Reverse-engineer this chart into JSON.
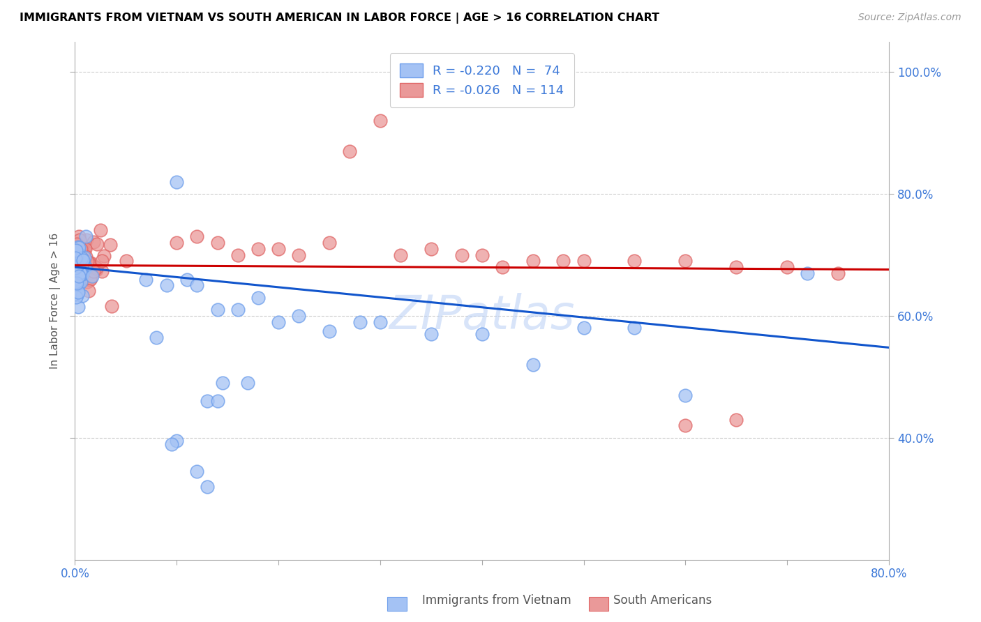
{
  "title": "IMMIGRANTS FROM VIETNAM VS SOUTH AMERICAN IN LABOR FORCE | AGE > 16 CORRELATION CHART",
  "source": "Source: ZipAtlas.com",
  "ylabel": "In Labor Force | Age > 16",
  "xlim": [
    0.0,
    0.8
  ],
  "ylim": [
    0.2,
    1.05
  ],
  "yticks_right": [
    0.4,
    0.6,
    0.8,
    1.0
  ],
  "ytick_labels_right": [
    "40.0%",
    "60.0%",
    "80.0%",
    "100.0%"
  ],
  "blue_color": "#a4c2f4",
  "blue_edge_color": "#6d9eeb",
  "pink_color": "#ea9999",
  "pink_edge_color": "#e06666",
  "blue_line_color": "#1155cc",
  "pink_line_color": "#cc0000",
  "watermark": "ZIPatlas",
  "legend_R_blue": "-0.220",
  "legend_N_blue": "74",
  "legend_R_pink": "-0.026",
  "legend_N_pink": "114",
  "blue_line_start_y": 0.68,
  "blue_line_end_y": 0.548,
  "pink_line_start_y": 0.683,
  "pink_line_end_y": 0.676,
  "grid_color": "#cccccc",
  "axis_color": "#aaaaaa",
  "tick_label_color": "#3c78d8",
  "title_color": "#000000",
  "source_color": "#999999"
}
